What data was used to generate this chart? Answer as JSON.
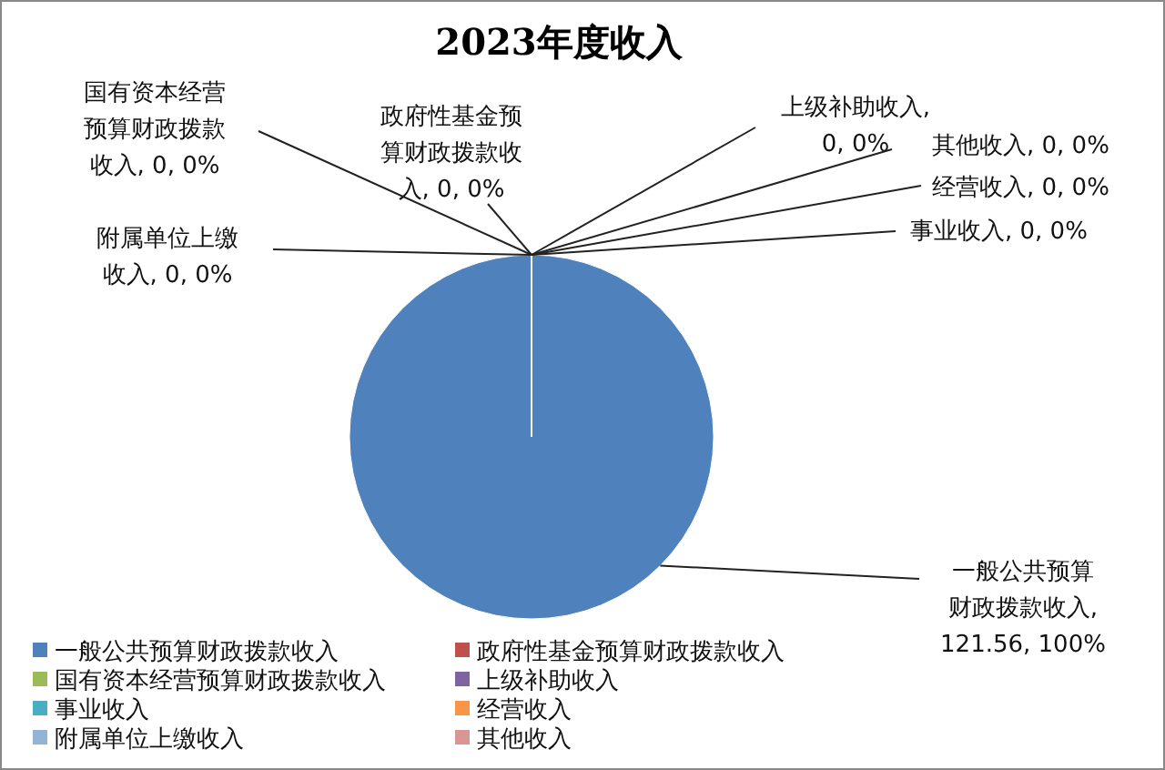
{
  "chart_data": {
    "type": "pie",
    "title": "2023年度收入",
    "categories": [
      "一般公共预算财政拨款收入",
      "政府性基金预算财政拨款收入",
      "国有资本经营预算财政拨款收入",
      "上级补助收入",
      "事业收入",
      "经营收入",
      "附属单位上缴收入",
      "其他收入"
    ],
    "values": [
      121.56,
      0,
      0,
      0,
      0,
      0,
      0,
      0
    ],
    "colors": [
      "#4f81bd",
      "#c0504d",
      "#9bbb59",
      "#8064a2",
      "#4bacc6",
      "#f79646",
      "#95b3d7",
      "#d99694"
    ],
    "value_labels": [
      "一般公共预算财政拨款收入, 121.56, 100%",
      "政府性基金预算财政拨款收入, 0, 0%",
      "国有资本经营预算财政拨款收入, 0, 0%",
      "上级补助收入, 0, 0%",
      "事业收入, 0, 0%",
      "经营收入, 0, 0%",
      "附属单位上缴收入, 0, 0%",
      "其他收入, 0, 0%"
    ],
    "legend": "bottom"
  }
}
